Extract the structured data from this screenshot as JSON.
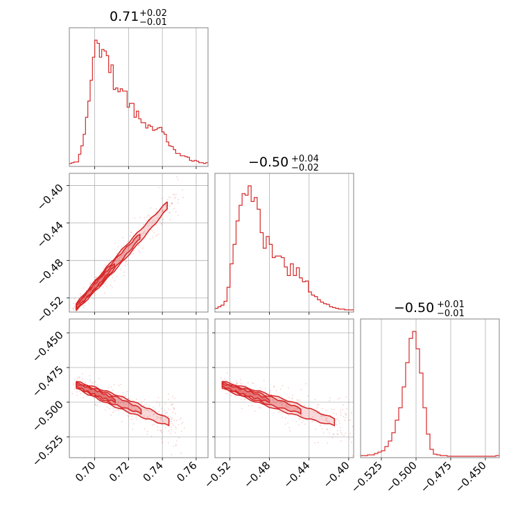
{
  "colors": {
    "series": "#d62728",
    "grid": "#b0b0b0",
    "frame": "#808080"
  },
  "chart_data": [
    {
      "type": "histogram",
      "panel": "param-0-marginal",
      "title_value": "0.71",
      "title_plus": "+0.02",
      "title_minus": "−0.01",
      "xlim": [
        0.685,
        0.767
      ],
      "grid": true,
      "bin_edges": [
        0.685,
        0.767
      ],
      "counts": [
        2,
        3,
        4,
        4,
        14,
        25,
        40,
        62,
        83,
        110,
        140,
        162,
        158,
        140,
        150,
        148,
        142,
        120,
        130,
        98,
        100,
        95,
        99,
        96,
        96,
        75,
        80,
        80,
        62,
        70,
        60,
        55,
        55,
        48,
        52,
        50,
        45,
        46,
        48,
        49,
        43,
        40,
        30,
        25,
        24,
        20,
        15,
        15,
        12,
        12,
        11,
        10,
        6,
        5,
        6,
        5,
        3,
        3,
        2,
        3
      ]
    },
    {
      "type": "histogram",
      "panel": "param-1-marginal",
      "title_value": "−0.50",
      "title_plus": "+0.04",
      "title_minus": "−0.02",
      "xlim": [
        -0.535,
        -0.395
      ],
      "xticks": [
        "−0.52",
        "−0.48",
        "−0.44",
        "−0.40"
      ],
      "grid": true,
      "bin_edges": [
        -0.535,
        -0.395
      ],
      "counts": [
        3,
        5,
        7,
        12,
        30,
        60,
        85,
        115,
        135,
        150,
        148,
        160,
        140,
        145,
        130,
        100,
        80,
        95,
        85,
        68,
        70,
        70,
        68,
        56,
        45,
        60,
        45,
        55,
        42,
        37,
        38,
        24,
        20,
        18,
        14,
        11,
        9,
        8,
        5,
        4,
        3,
        2,
        2,
        1,
        1,
        1
      ]
    },
    {
      "type": "histogram",
      "panel": "param-2-marginal",
      "title_value": "−0.50",
      "title_plus": "+0.01",
      "title_minus": "−0.01",
      "xlim": [
        -0.54,
        -0.44
      ],
      "xticks": [
        "−0.525",
        "−0.500",
        "−0.475",
        "−0.450"
      ],
      "grid": true,
      "bin_edges": [
        -0.54,
        -0.44
      ],
      "counts": [
        1,
        1,
        2,
        2,
        4,
        6,
        8,
        14,
        22,
        34,
        52,
        70,
        100,
        135,
        170,
        180,
        155,
        120,
        70,
        32,
        10,
        3,
        2,
        1,
        1,
        0,
        0,
        0,
        0,
        0,
        0,
        0,
        0,
        0,
        0,
        0,
        0,
        0,
        0,
        1
      ]
    },
    {
      "type": "contour",
      "panel": "param-0-vs-param-1",
      "xlim": [
        0.685,
        0.767
      ],
      "ylim": [
        -0.535,
        -0.387
      ],
      "yticks": [
        "−0.40",
        "−0.44",
        "−0.48",
        "−0.52"
      ],
      "grid": true,
      "ridge": {
        "x": [
          0.688,
          0.744
        ],
        "y": [
          -0.532,
          -0.419
        ]
      },
      "scatter_spread": 0.0045
    },
    {
      "type": "contour",
      "panel": "param-0-vs-param-2",
      "xlim": [
        0.685,
        0.767
      ],
      "ylim": [
        -0.54,
        -0.44
      ],
      "xticks": [
        "0.70",
        "0.72",
        "0.74",
        "0.76"
      ],
      "yticks": [
        "−0.450",
        "−0.475",
        "−0.500",
        "−0.525"
      ],
      "grid": true,
      "ridge": {
        "x": [
          0.688,
          0.745
        ],
        "y": [
          -0.487,
          -0.515
        ]
      },
      "scatter_spread": 0.004
    },
    {
      "type": "contour",
      "panel": "param-1-vs-param-2",
      "xlim": [
        -0.535,
        -0.395
      ],
      "ylim": [
        -0.54,
        -0.44
      ],
      "xticks": [
        "−0.52",
        "−0.48",
        "−0.44",
        "−0.40"
      ],
      "grid": true,
      "ridge": {
        "x": [
          -0.53,
          -0.412
        ],
        "y": [
          -0.487,
          -0.515
        ]
      },
      "scatter_spread": 0.004
    }
  ]
}
